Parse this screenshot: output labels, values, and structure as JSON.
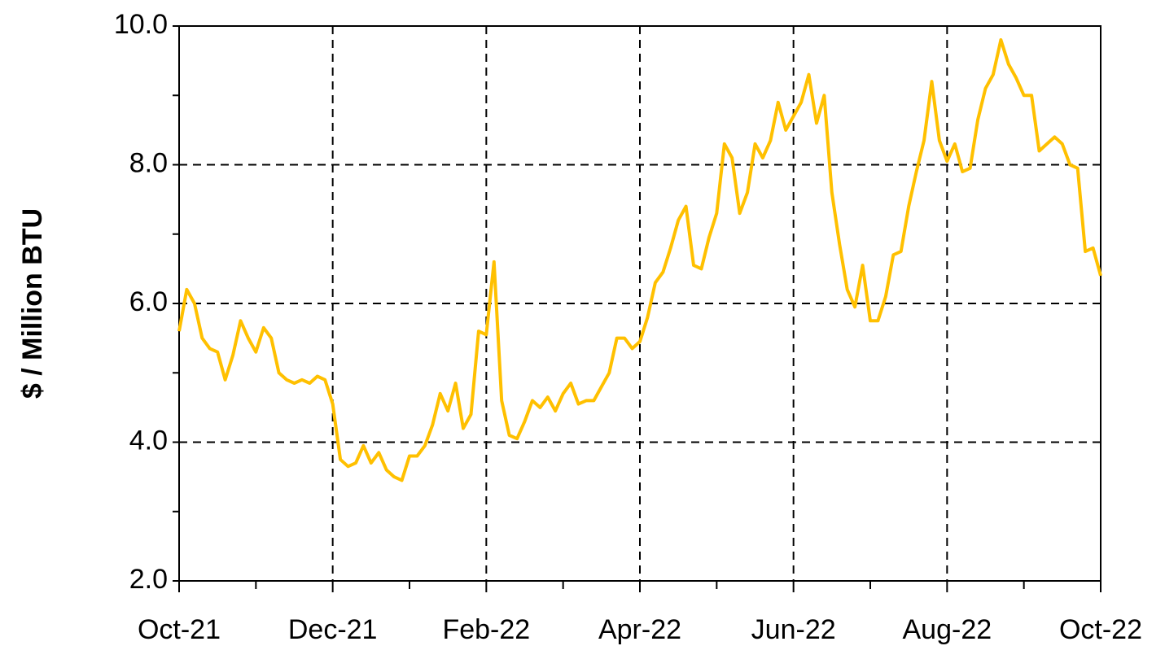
{
  "chart_data": {
    "type": "line",
    "y_label": "$ / Million BTU",
    "categories": [
      "Oct-21",
      null,
      null,
      null,
      null,
      null,
      null,
      null,
      null,
      null,
      null,
      null,
      null,
      null,
      null,
      null,
      null,
      null,
      null,
      null,
      "Dec-21",
      null,
      null,
      null,
      null,
      null,
      null,
      null,
      null,
      null,
      null,
      null,
      null,
      null,
      null,
      null,
      null,
      null,
      null,
      null,
      "Feb-22",
      null,
      null,
      null,
      null,
      null,
      null,
      null,
      null,
      null,
      null,
      null,
      null,
      null,
      null,
      null,
      null,
      null,
      null,
      null,
      "Apr-22",
      null,
      null,
      null,
      null,
      null,
      null,
      null,
      null,
      null,
      null,
      null,
      null,
      null,
      null,
      null,
      null,
      null,
      null,
      null,
      "Jun-22",
      null,
      null,
      null,
      null,
      null,
      null,
      null,
      null,
      null,
      null,
      null,
      null,
      null,
      null,
      null,
      null,
      null,
      null,
      null,
      "Aug-22",
      null,
      null,
      null,
      null,
      null,
      null,
      null,
      null,
      null,
      null,
      null,
      null,
      null,
      null,
      null,
      null,
      null,
      null,
      null,
      "Oct-22"
    ],
    "values": [
      5.6,
      6.2,
      6.0,
      5.5,
      5.35,
      5.3,
      4.9,
      5.25,
      5.75,
      5.5,
      5.3,
      5.65,
      5.5,
      5.0,
      4.9,
      4.85,
      4.9,
      4.85,
      4.95,
      4.9,
      4.55,
      3.75,
      3.65,
      3.7,
      3.95,
      3.7,
      3.85,
      3.6,
      3.5,
      3.45,
      3.8,
      3.8,
      3.95,
      4.25,
      4.7,
      4.45,
      4.85,
      4.2,
      4.4,
      5.6,
      5.55,
      6.6,
      4.6,
      4.1,
      4.05,
      4.3,
      4.6,
      4.5,
      4.65,
      4.45,
      4.7,
      4.85,
      4.55,
      4.6,
      4.6,
      4.8,
      5.0,
      5.5,
      5.5,
      5.35,
      5.45,
      5.8,
      6.3,
      6.45,
      6.8,
      7.2,
      7.4,
      6.55,
      6.5,
      6.95,
      7.3,
      8.3,
      8.1,
      7.3,
      7.6,
      8.3,
      8.1,
      8.35,
      8.9,
      8.5,
      8.7,
      8.9,
      9.3,
      8.6,
      9.0,
      7.6,
      6.85,
      6.2,
      5.95,
      6.55,
      5.75,
      5.75,
      6.1,
      6.7,
      6.75,
      7.4,
      7.9,
      8.35,
      9.2,
      8.35,
      8.05,
      8.3,
      7.9,
      7.95,
      8.65,
      9.1,
      9.3,
      9.8,
      9.45,
      9.25,
      9.0,
      9.0,
      8.2,
      8.3,
      8.4,
      8.3,
      8.0,
      7.95,
      6.75,
      6.8,
      6.4
    ],
    "color": "#ffc000",
    "ylim": [
      2,
      10
    ],
    "yticks": [
      {
        "value": 2,
        "label": "2.0"
      },
      {
        "value": 4,
        "label": "4.0"
      },
      {
        "value": 6,
        "label": "6.0"
      },
      {
        "value": 8,
        "label": "8.0"
      },
      {
        "value": 10,
        "label": "10.0"
      }
    ],
    "y_minor_ticks": [
      3,
      5,
      7,
      9
    ],
    "grid": true
  }
}
